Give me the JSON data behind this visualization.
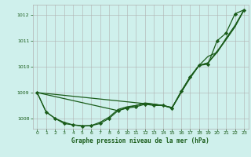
{
  "xlabel": "Graphe pression niveau de la mer (hPa)",
  "background_color": "#cff0ec",
  "plot_bg_color": "#cff0ec",
  "grid_color": "#b0b0b0",
  "line_color": "#1a5c1a",
  "marker_color": "#1a5c1a",
  "ylim": [
    1007.6,
    1012.4
  ],
  "xlim": [
    -0.5,
    23.5
  ],
  "yticks": [
    1008,
    1009,
    1010,
    1011,
    1012
  ],
  "xticks": [
    0,
    1,
    2,
    3,
    4,
    5,
    6,
    7,
    8,
    9,
    10,
    11,
    12,
    13,
    14,
    15,
    16,
    17,
    18,
    19,
    20,
    21,
    22,
    23
  ],
  "line1_x": [
    0,
    1,
    2,
    3,
    4,
    5,
    6,
    7,
    8,
    9,
    10,
    11,
    12,
    13,
    14,
    15,
    16,
    17,
    18,
    19,
    20,
    21,
    22,
    23
  ],
  "line1": [
    1009.0,
    1008.25,
    1008.0,
    1007.8,
    1007.75,
    1007.7,
    1007.72,
    1007.8,
    1008.0,
    1008.3,
    1008.4,
    1008.45,
    1008.55,
    1008.5,
    1008.5,
    1008.4,
    1009.05,
    1009.6,
    1010.05,
    1010.1,
    1011.0,
    1011.3,
    1012.05,
    1012.2
  ],
  "line2_x": [
    0,
    1,
    2,
    3,
    4,
    5,
    6,
    7,
    8,
    9,
    10,
    11,
    12,
    13,
    14,
    15,
    16,
    17,
    18,
    19,
    20,
    21,
    22,
    23
  ],
  "line2": [
    1009.0,
    1008.25,
    1008.0,
    1007.85,
    1007.75,
    1007.72,
    1007.72,
    1007.85,
    1008.05,
    1008.35,
    1008.45,
    1008.5,
    1008.6,
    1008.55,
    1008.5,
    1008.4,
    1009.0,
    1009.55,
    1010.05,
    1010.15,
    1010.6,
    1011.05,
    1011.55,
    1012.2
  ],
  "line3_x": [
    0,
    9,
    10,
    11,
    12,
    13,
    14,
    15,
    16,
    17,
    18,
    19,
    20,
    21,
    22,
    23
  ],
  "line3": [
    1009.0,
    1008.3,
    1008.42,
    1008.5,
    1008.58,
    1008.55,
    1008.5,
    1008.42,
    1009.0,
    1009.6,
    1010.05,
    1010.15,
    1010.55,
    1011.05,
    1011.55,
    1012.2
  ],
  "line4_x": [
    0,
    14,
    15,
    16,
    17,
    18,
    19,
    20,
    21,
    22,
    23
  ],
  "line4": [
    1009.0,
    1008.5,
    1008.42,
    1009.0,
    1009.6,
    1010.05,
    1010.4,
    1010.55,
    1011.1,
    1011.6,
    1012.2
  ]
}
